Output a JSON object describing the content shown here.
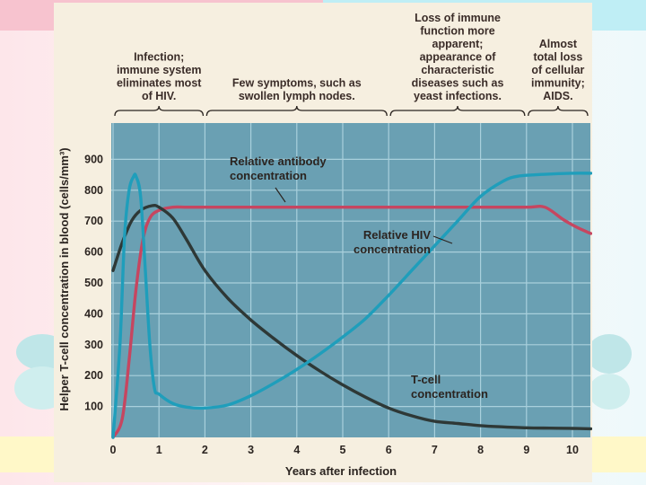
{
  "chart_data": {
    "type": "line",
    "xlabel": "Years after infection",
    "ylabel": "Helper T-cell concentration in blood (cells/mm³)",
    "xlim": [
      0,
      10.4
    ],
    "ylim": [
      0,
      1000
    ],
    "x_ticks": [
      "0",
      "1",
      "2",
      "3",
      "4",
      "5",
      "6",
      "7",
      "8",
      "9",
      "10"
    ],
    "y_ticks": [
      "100",
      "200",
      "300",
      "400",
      "500",
      "600",
      "700",
      "800",
      "900"
    ],
    "grid": true,
    "phases": [
      {
        "lines": [
          "Infection;",
          "immune system",
          "eliminates most",
          "of HIV."
        ],
        "x_range": [
          0,
          2
        ]
      },
      {
        "lines": [
          "Few symptoms, such as",
          "swollen lymph nodes."
        ],
        "x_range": [
          2,
          6
        ]
      },
      {
        "lines": [
          "Loss of immune",
          "function more",
          "apparent;",
          "appearance of",
          "characteristic",
          "diseases such as",
          "yeast infections."
        ],
        "x_range": [
          6,
          9
        ]
      },
      {
        "lines": [
          "Almost",
          "total loss",
          "of cellular",
          "immunity;",
          "AIDS."
        ],
        "x_range": [
          9,
          10.4
        ]
      }
    ],
    "series": [
      {
        "name": "T-cell concentration",
        "label_lines": [
          "T-cell",
          "concentration"
        ],
        "color": "#2e3836",
        "x": [
          0,
          0.2,
          0.4,
          0.6,
          0.85,
          1.0,
          1.3,
          1.6,
          2.0,
          2.5,
          3.0,
          3.5,
          4.0,
          4.5,
          5.0,
          5.5,
          6.0,
          6.5,
          7.0,
          7.5,
          8.0,
          8.5,
          9.0,
          9.5,
          10.0,
          10.4
        ],
        "y": [
          540,
          630,
          700,
          735,
          750,
          745,
          710,
          640,
          540,
          450,
          380,
          320,
          265,
          215,
          170,
          130,
          95,
          70,
          52,
          45,
          38,
          34,
          31,
          30,
          29,
          28
        ]
      },
      {
        "name": "Relative HIV concentration",
        "label_lines": [
          "Relative HIV",
          "concentration"
        ],
        "color": "#1f9ebb",
        "x": [
          0,
          0.15,
          0.25,
          0.35,
          0.45,
          0.5,
          0.6,
          0.7,
          0.8,
          0.9,
          1.0,
          1.3,
          1.6,
          2.0,
          2.5,
          3.0,
          3.5,
          4.0,
          4.5,
          5.0,
          5.5,
          6.0,
          6.5,
          7.0,
          7.5,
          8.0,
          8.5,
          8.8,
          9.2,
          9.6,
          10.0,
          10.4
        ],
        "y": [
          0,
          300,
          650,
          800,
          845,
          845,
          780,
          550,
          300,
          160,
          140,
          110,
          98,
          95,
          105,
          135,
          175,
          220,
          270,
          325,
          385,
          460,
          540,
          620,
          700,
          780,
          830,
          845,
          850,
          853,
          855,
          855
        ]
      },
      {
        "name": "Relative antibody concentration",
        "label_lines": [
          "Relative antibody",
          "concentration"
        ],
        "color": "#c64660",
        "x": [
          0,
          0.2,
          0.35,
          0.5,
          0.65,
          0.8,
          1.0,
          1.3,
          1.6,
          2.0,
          3.0,
          4.0,
          5.0,
          6.0,
          7.0,
          8.0,
          9.0,
          9.4,
          9.8,
          10.1,
          10.4
        ],
        "y": [
          0,
          60,
          250,
          480,
          640,
          710,
          735,
          745,
          745,
          745,
          745,
          745,
          745,
          745,
          745,
          745,
          745,
          745,
          705,
          680,
          660
        ]
      }
    ]
  }
}
